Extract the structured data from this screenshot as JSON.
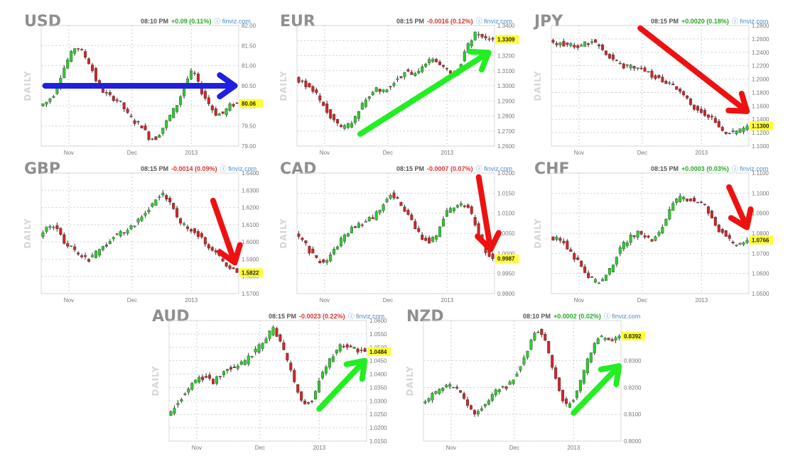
{
  "brand": "finviz.com",
  "axis_label": "DAILY",
  "colors": {
    "up": "#2ecc2e",
    "down": "#d42424",
    "arrow_blue": "#1f1fe0",
    "arrow_green": "#22ee22",
    "arrow_red": "#ee1111",
    "last_bg": "#ffff33"
  },
  "chart_data": [
    {
      "type": "candlestick",
      "symbol": "USD",
      "time": "08:10 PM",
      "change": "+0.09 (0.11%)",
      "direction": "up",
      "yticks": [
        "82.00",
        "81.50",
        "81.00",
        "80.50",
        "80.00",
        "79.50",
        "79.00"
      ],
      "ylim": [
        79.0,
        82.0
      ],
      "xticks": [
        "Nov",
        "Dec",
        "2013"
      ],
      "last": "80.06",
      "last_value": 80.06,
      "trend": [
        80.0,
        80.1,
        80.3,
        80.8,
        81.2,
        81.5,
        81.3,
        81.0,
        80.5,
        80.3,
        80.2,
        80.1,
        79.8,
        79.6,
        79.5,
        79.2,
        79.2,
        79.5,
        79.8,
        80.1,
        80.6,
        80.9,
        80.4,
        80.1,
        79.8,
        79.8,
        80.0,
        80.06
      ],
      "arrow": "blue",
      "arrow_from": [
        0.02,
        80.5
      ],
      "arrow_to": [
        0.98,
        80.5
      ]
    },
    {
      "type": "candlestick",
      "symbol": "EUR",
      "time": "08:15 PM",
      "change": "-0.0016 (0.12%)",
      "direction": "down",
      "yticks": [
        "1.3400",
        "1.3300",
        "1.3200",
        "1.3100",
        "1.3000",
        "1.2900",
        "1.2800",
        "1.2700",
        "1.2600"
      ],
      "ylim": [
        1.26,
        1.34
      ],
      "xticks": [
        "Nov",
        "Dec",
        "2013"
      ],
      "last": "1.3309",
      "last_value": 1.3309,
      "trend": [
        1.305,
        1.302,
        1.298,
        1.292,
        1.283,
        1.276,
        1.272,
        1.275,
        1.283,
        1.292,
        1.298,
        1.296,
        1.3,
        1.305,
        1.31,
        1.306,
        1.312,
        1.318,
        1.316,
        1.312,
        1.306,
        1.316,
        1.328,
        1.336,
        1.332,
        1.331
      ],
      "arrow": "green",
      "arrow_from": [
        0.32,
        1.268
      ],
      "arrow_to": [
        0.97,
        1.322
      ]
    },
    {
      "type": "candlestick",
      "symbol": "JPY",
      "time": "08:15 PM",
      "change": "+0.0020 (0.18%)",
      "direction": "up",
      "yticks": [
        "1.2800",
        "1.2600",
        "1.2400",
        "1.2200",
        "1.2000",
        "1.1800",
        "1.1600",
        "1.1400",
        "1.1200",
        "1.1000"
      ],
      "ylim": [
        1.1,
        1.28
      ],
      "xticks": [
        "Nov",
        "Dec",
        "2013"
      ],
      "last": "1.1300",
      "last_value": 1.13,
      "trend": [
        1.255,
        1.254,
        1.252,
        1.25,
        1.248,
        1.254,
        1.256,
        1.248,
        1.236,
        1.226,
        1.22,
        1.218,
        1.217,
        1.214,
        1.206,
        1.2,
        1.196,
        1.19,
        1.176,
        1.166,
        1.156,
        1.148,
        1.142,
        1.13,
        1.118,
        1.12,
        1.122,
        1.13
      ],
      "arrow": "red",
      "arrow_from": [
        0.45,
        1.276
      ],
      "arrow_to": [
        0.99,
        1.152
      ]
    },
    {
      "type": "candlestick",
      "symbol": "GBP",
      "time": "08:15 PM",
      "change": "-0.0014 (0.09%)",
      "direction": "down",
      "yticks": [
        "1.6400",
        "1.6300",
        "1.6200",
        "1.6100",
        "1.6000",
        "1.5900",
        "1.5800",
        "1.5700"
      ],
      "ylim": [
        1.57,
        1.64
      ],
      "xticks": [
        "Nov",
        "Dec",
        "2013"
      ],
      "last": "1.5822",
      "last_value": 1.5822,
      "trend": [
        1.604,
        1.61,
        1.608,
        1.6,
        1.596,
        1.592,
        1.59,
        1.594,
        1.598,
        1.604,
        1.605,
        1.608,
        1.612,
        1.618,
        1.624,
        1.628,
        1.622,
        1.612,
        1.608,
        1.606,
        1.6,
        1.596,
        1.59,
        1.585,
        1.5822
      ],
      "arrow": "red",
      "arrow_from": [
        0.87,
        1.624
      ],
      "arrow_to": [
        0.98,
        1.588
      ]
    },
    {
      "type": "candlestick",
      "symbol": "CAD",
      "time": "08:15 PM",
      "change": "-0.0007 (0.07%)",
      "direction": "down",
      "yticks": [
        "1.0200",
        "1.0150",
        "1.0100",
        "1.0050",
        "1.0000",
        "0.9950",
        "0.9900"
      ],
      "ylim": [
        0.99,
        1.02
      ],
      "xticks": [
        "Nov",
        "Dec",
        "2013"
      ],
      "last": "0.9987",
      "last_value": 0.9987,
      "trend": [
        1.005,
        1.003,
        1.0,
        0.998,
        0.9985,
        1.001,
        1.004,
        1.006,
        1.007,
        1.008,
        1.009,
        1.012,
        1.015,
        1.013,
        1.01,
        1.007,
        1.004,
        1.003,
        1.005,
        1.01,
        1.011,
        1.012,
        1.011,
        1.006,
        1.001,
        0.9987
      ],
      "arrow": "red",
      "arrow_from": [
        0.92,
        1.019
      ],
      "arrow_to": [
        0.98,
        1.001
      ]
    },
    {
      "type": "candlestick",
      "symbol": "CHF",
      "time": "08:15 PM",
      "change": "+0.0003 (0.03%)",
      "direction": "up",
      "yticks": [
        "1.1100",
        "1.1000",
        "1.0900",
        "1.0800",
        "1.0700",
        "1.0600",
        "1.0500"
      ],
      "ylim": [
        1.05,
        1.11
      ],
      "xticks": [
        "Nov",
        "Dec",
        "2013"
      ],
      "last": "1.0766",
      "last_value": 1.0766,
      "trend": [
        1.078,
        1.077,
        1.075,
        1.07,
        1.065,
        1.06,
        1.056,
        1.056,
        1.06,
        1.068,
        1.074,
        1.078,
        1.08,
        1.079,
        1.076,
        1.08,
        1.088,
        1.095,
        1.098,
        1.097,
        1.096,
        1.095,
        1.088,
        1.082,
        1.08,
        1.074,
        1.075,
        1.0766
      ],
      "arrow": "red",
      "arrow_from": [
        0.9,
        1.103
      ],
      "arrow_to": [
        0.99,
        1.083
      ]
    },
    {
      "type": "candlestick",
      "symbol": "AUD",
      "time": "08:15 PM",
      "change": "-0.0023 (0.22%)",
      "direction": "down",
      "yticks": [
        "1.0600",
        "1.0550",
        "1.0500",
        "1.0450",
        "1.0400",
        "1.0350",
        "1.0300",
        "1.0250",
        "1.0200",
        "1.0150"
      ],
      "ylim": [
        1.015,
        1.06
      ],
      "xticks": [
        "Nov",
        "Dec",
        "2013"
      ],
      "last": "1.0484",
      "last_value": 1.0484,
      "trend": [
        1.024,
        1.028,
        1.032,
        1.035,
        1.038,
        1.039,
        1.037,
        1.04,
        1.042,
        1.043,
        1.044,
        1.047,
        1.05,
        1.054,
        1.057,
        1.051,
        1.043,
        1.034,
        1.029,
        1.03,
        1.038,
        1.044,
        1.048,
        1.051,
        1.05,
        1.049,
        1.0484
      ],
      "arrow": "green",
      "arrow_from": [
        0.76,
        1.027
      ],
      "arrow_to": [
        0.99,
        1.045
      ]
    },
    {
      "type": "candlestick",
      "symbol": "NZD",
      "time": "08:10 PM",
      "change": "+0.0002 (0.02%)",
      "direction": "up",
      "yticks": [
        "0.8300",
        "0.8200",
        "0.8100",
        "0.8000"
      ],
      "ylim": [
        0.8,
        0.845
      ],
      "xticks": [
        "Nov",
        "Dec",
        "2013"
      ],
      "last": "0.8392",
      "last_value": 0.8392,
      "trend": [
        0.815,
        0.816,
        0.819,
        0.82,
        0.821,
        0.818,
        0.814,
        0.81,
        0.813,
        0.816,
        0.819,
        0.82,
        0.823,
        0.828,
        0.835,
        0.842,
        0.839,
        0.83,
        0.819,
        0.813,
        0.816,
        0.823,
        0.832,
        0.838,
        0.839,
        0.837,
        0.8392
      ],
      "arrow": "green",
      "arrow_from": [
        0.76,
        0.8105
      ],
      "arrow_to": [
        0.99,
        0.828
      ]
    }
  ]
}
